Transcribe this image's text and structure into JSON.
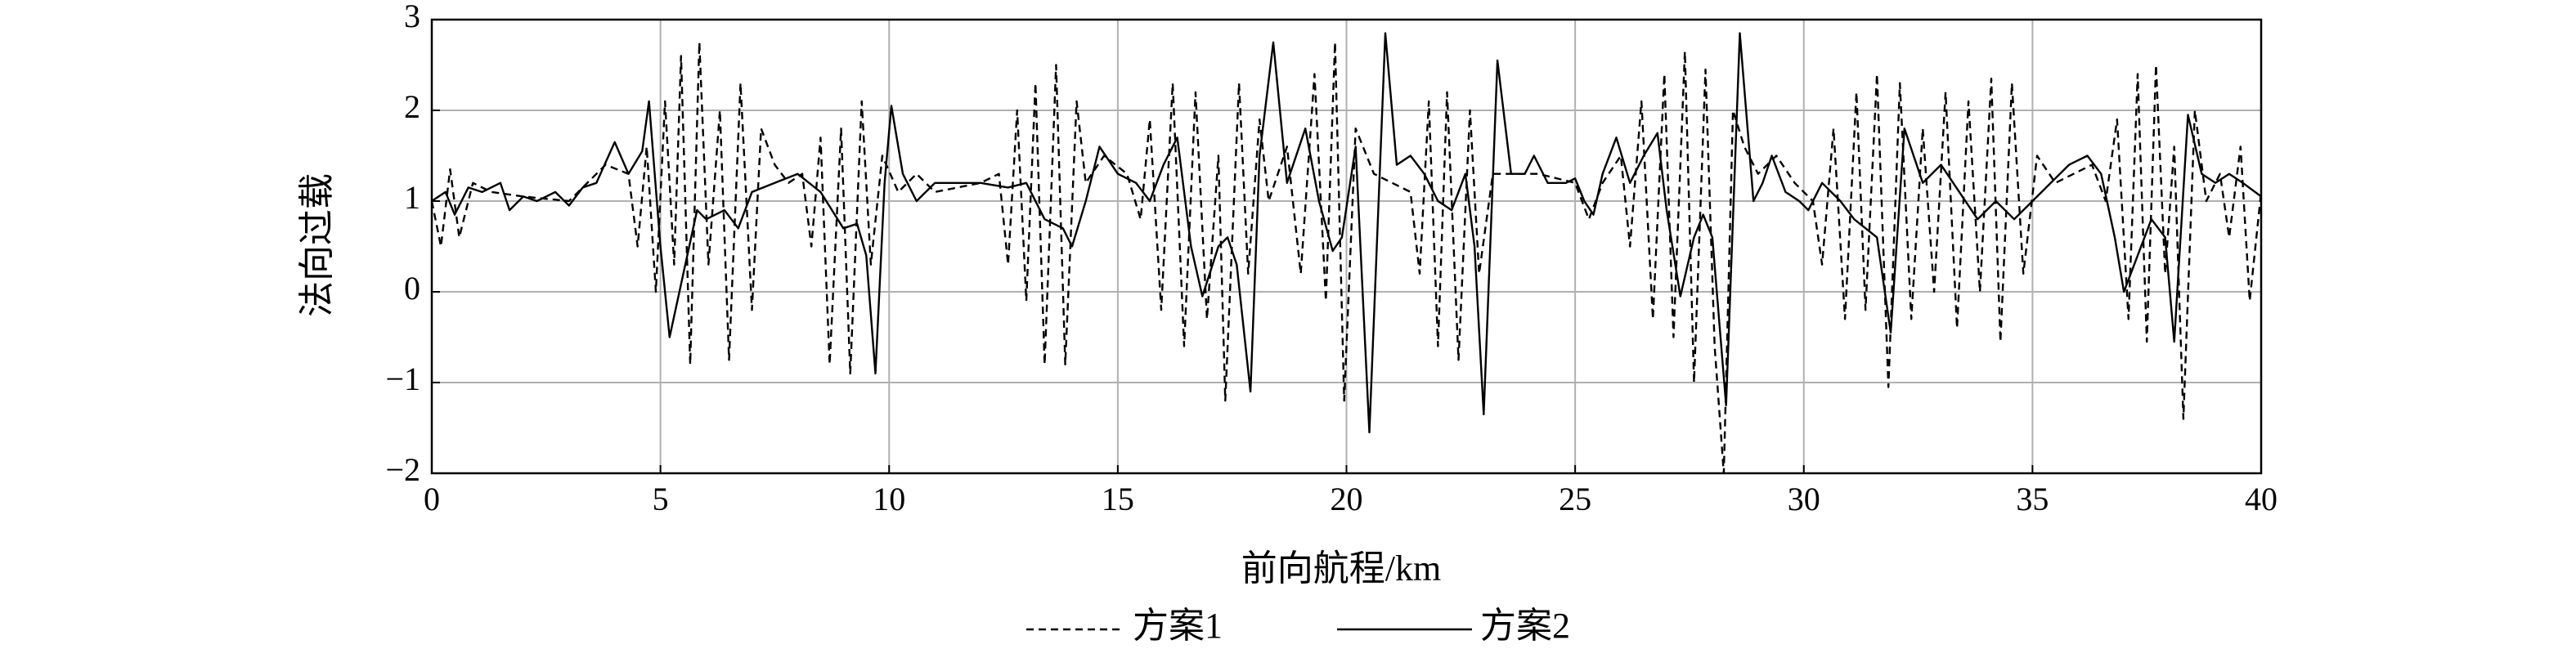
{
  "chart_data": {
    "type": "line",
    "xlabel": "前向航程/km",
    "ylabel": "法向过载",
    "xlim": [
      0,
      40
    ],
    "ylim": [
      -2,
      3
    ],
    "xticks": [
      0,
      5,
      10,
      15,
      20,
      25,
      30,
      35,
      40
    ],
    "yticks": [
      {
        "value": -2,
        "label": "−2"
      },
      {
        "value": -1,
        "label": "−1"
      },
      0,
      1,
      2,
      3
    ],
    "grid": true,
    "legend": "bottom",
    "series": [
      {
        "name": "方案1",
        "color": "#000000",
        "line_style": "dashed",
        "x": [
          0,
          0.2,
          0.4,
          0.6,
          0.9,
          1.3,
          2,
          3,
          3.8,
          4.3,
          4.5,
          4.7,
          4.9,
          5.1,
          5.3,
          5.45,
          5.65,
          5.85,
          6.05,
          6.3,
          6.5,
          6.75,
          7.0,
          7.2,
          7.5,
          7.8,
          8.1,
          8.3,
          8.5,
          8.7,
          8.95,
          9.15,
          9.4,
          9.6,
          9.85,
          10.2,
          10.6,
          11,
          12,
          12.4,
          12.6,
          12.8,
          13.0,
          13.2,
          13.4,
          13.65,
          13.85,
          14.1,
          14.3,
          14.7,
          15.2,
          15.5,
          15.7,
          15.95,
          16.2,
          16.45,
          16.7,
          16.95,
          17.2,
          17.35,
          17.65,
          17.85,
          18.1,
          18.3,
          18.7,
          19.0,
          19.3,
          19.55,
          19.75,
          19.95,
          20.2,
          20.6,
          21,
          21.4,
          21.6,
          21.8,
          22.0,
          22.2,
          22.45,
          22.7,
          22.9,
          23.2,
          23.6,
          24.2,
          25,
          25.3,
          25.6,
          26.0,
          26.2,
          26.45,
          26.7,
          26.95,
          27.15,
          27.4,
          27.6,
          27.85,
          28.05,
          28.25,
          28.45,
          28.7,
          29,
          29.4,
          29.8,
          30.2,
          30.4,
          30.65,
          30.9,
          31.15,
          31.35,
          31.6,
          31.85,
          32.1,
          32.35,
          32.6,
          32.85,
          33.1,
          33.35,
          33.6,
          33.85,
          34.1,
          34.3,
          34.55,
          34.8,
          35.1,
          35.5,
          35.9,
          36.3,
          36.6,
          36.85,
          37.1,
          37.3,
          37.5,
          37.7,
          37.9,
          38.1,
          38.3,
          38.55,
          38.8,
          39.1,
          39.3,
          39.55,
          39.75,
          40
        ],
        "values": [
          1.0,
          0.5,
          1.35,
          0.6,
          1.2,
          1.1,
          1.05,
          1.0,
          1.4,
          1.3,
          0.5,
          1.6,
          0.0,
          2.1,
          0.3,
          2.6,
          -0.8,
          2.75,
          0.3,
          2.0,
          -0.75,
          2.3,
          -0.2,
          1.8,
          1.4,
          1.2,
          1.3,
          0.5,
          1.7,
          -0.8,
          1.8,
          -0.9,
          2.1,
          0.3,
          1.5,
          1.1,
          1.3,
          1.1,
          1.2,
          1.3,
          0.3,
          2.0,
          -0.1,
          2.3,
          -0.8,
          2.5,
          -0.8,
          2.1,
          1.2,
          1.5,
          1.3,
          0.8,
          1.9,
          -0.2,
          2.3,
          -0.6,
          2.2,
          -0.3,
          1.5,
          -1.2,
          2.3,
          0.2,
          1.9,
          1.0,
          1.6,
          0.2,
          2.4,
          -0.1,
          2.75,
          -1.2,
          1.8,
          1.3,
          1.2,
          1.1,
          0.2,
          2.1,
          -0.6,
          2.2,
          -0.75,
          2.0,
          0.2,
          1.3,
          1.3,
          1.3,
          1.2,
          0.8,
          1.2,
          1.5,
          0.5,
          2.1,
          -0.3,
          2.4,
          -0.5,
          2.65,
          -1.0,
          2.45,
          -0.6,
          -2.0,
          2.0,
          1.6,
          1.3,
          1.5,
          1.2,
          1.0,
          0.3,
          1.8,
          -0.3,
          2.2,
          -0.2,
          2.4,
          -1.05,
          2.3,
          -0.3,
          1.8,
          0.0,
          2.2,
          -0.4,
          2.1,
          0.0,
          2.35,
          -0.55,
          2.3,
          0.2,
          1.5,
          1.2,
          1.3,
          1.4,
          1.0,
          1.9,
          -0.3,
          2.4,
          -0.55,
          2.5,
          0.2,
          1.6,
          -1.4,
          2.0,
          1.0,
          1.3,
          0.6,
          1.6,
          -0.1,
          1.1
        ]
      },
      {
        "name": "方案2",
        "color": "#000000",
        "line_style": "solid",
        "x": [
          0,
          0.3,
          0.5,
          0.8,
          1.1,
          1.5,
          1.7,
          2.0,
          2.3,
          2.7,
          3.0,
          3.3,
          3.6,
          4.0,
          4.3,
          4.6,
          4.75,
          5.0,
          5.2,
          5.5,
          5.8,
          6.0,
          6.4,
          6.7,
          7.0,
          7.5,
          8.0,
          8.5,
          9.0,
          9.3,
          9.5,
          9.7,
          9.9,
          10.05,
          10.3,
          10.6,
          11,
          12,
          12.6,
          13,
          13.4,
          13.8,
          14.0,
          14.3,
          14.6,
          15,
          15.4,
          15.7,
          16.0,
          16.3,
          16.6,
          16.85,
          17.2,
          17.4,
          17.6,
          17.9,
          18.1,
          18.4,
          18.7,
          18.9,
          19.1,
          19.4,
          19.7,
          19.9,
          20.2,
          20.5,
          20.85,
          21.1,
          21.4,
          21.7,
          22.0,
          22.3,
          22.6,
          22.8,
          23.0,
          23.3,
          23.6,
          23.9,
          24.1,
          24.4,
          24.8,
          25.0,
          25.2,
          25.4,
          25.6,
          25.9,
          26.2,
          26.5,
          26.8,
          27.0,
          27.3,
          27.6,
          27.8,
          28.0,
          28.3,
          28.6,
          28.9,
          29.1,
          29.3,
          29.6,
          29.9,
          30.1,
          30.4,
          30.8,
          31.1,
          31.6,
          31.9,
          32.2,
          32.6,
          33,
          33.4,
          33.8,
          34.2,
          34.6,
          35,
          35.4,
          35.8,
          36.2,
          36.5,
          36.8,
          37.0,
          37.3,
          37.6,
          37.9,
          38.1,
          38.4,
          38.7,
          39.0,
          39.3,
          39.6,
          40
        ],
        "values": [
          1.0,
          1.1,
          0.85,
          1.15,
          1.1,
          1.2,
          0.9,
          1.05,
          1.0,
          1.1,
          0.95,
          1.15,
          1.2,
          1.65,
          1.3,
          1.55,
          2.1,
          0.5,
          -0.5,
          0.2,
          0.9,
          0.8,
          0.9,
          0.7,
          1.1,
          1.2,
          1.3,
          1.1,
          0.7,
          0.75,
          0.4,
          -0.9,
          1.2,
          2.05,
          1.3,
          1.0,
          1.2,
          1.2,
          1.15,
          1.2,
          0.8,
          0.7,
          0.5,
          1.0,
          1.6,
          1.3,
          1.2,
          1.0,
          1.4,
          1.7,
          0.5,
          -0.05,
          0.5,
          0.6,
          0.3,
          -1.1,
          1.5,
          2.75,
          1.2,
          1.5,
          1.8,
          1.0,
          0.45,
          0.6,
          1.6,
          -1.55,
          2.85,
          1.4,
          1.5,
          1.3,
          1.0,
          0.9,
          1.3,
          0.5,
          -1.35,
          2.55,
          1.3,
          1.3,
          1.5,
          1.2,
          1.2,
          1.25,
          1.0,
          0.85,
          1.3,
          1.7,
          1.2,
          1.5,
          1.75,
          0.9,
          -0.05,
          0.6,
          0.85,
          0.6,
          -1.25,
          2.85,
          1.0,
          1.2,
          1.5,
          1.1,
          1.0,
          0.9,
          1.2,
          1.0,
          0.8,
          0.6,
          -0.45,
          1.8,
          1.2,
          1.4,
          1.1,
          0.8,
          1.0,
          0.8,
          1.0,
          1.2,
          1.4,
          1.5,
          1.3,
          0.6,
          0.0,
          0.4,
          0.8,
          0.6,
          -0.55,
          1.95,
          1.3,
          1.2,
          1.3,
          1.2,
          1.05
        ]
      }
    ]
  }
}
